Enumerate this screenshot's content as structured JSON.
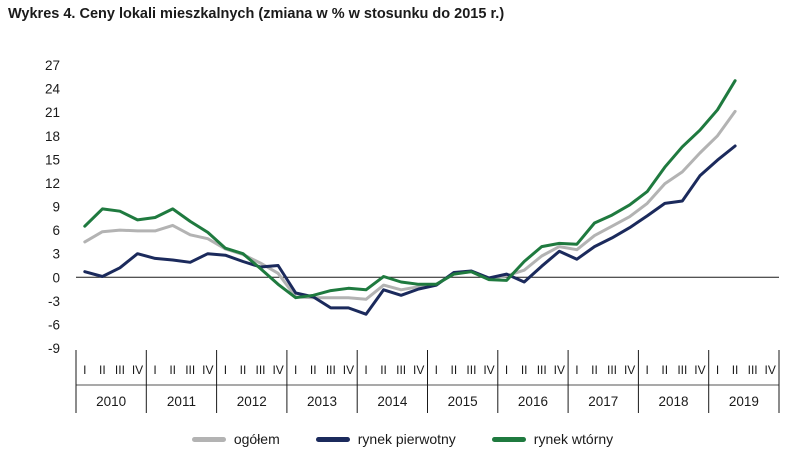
{
  "chart_data": {
    "type": "line",
    "title": "Wykres 4. Ceny lokali mieszkalnych (zmiana w % w stosunku do 2015 r.)",
    "xlabel": "",
    "ylabel": "",
    "ylim": [
      -9,
      27
    ],
    "yticks": [
      -9,
      -6,
      -3,
      0,
      3,
      6,
      9,
      12,
      15,
      18,
      21,
      24,
      27
    ],
    "years": [
      "2010",
      "2011",
      "2012",
      "2013",
      "2014",
      "2015",
      "2016",
      "2017",
      "2018",
      "2019"
    ],
    "quarters": [
      "I",
      "II",
      "III",
      "IV"
    ],
    "legend_position": "bottom",
    "grid": false,
    "series": [
      {
        "name": "ogółem",
        "color": "#b3b3b3",
        "values": [
          4.5,
          5.8,
          6.0,
          5.9,
          5.9,
          6.6,
          5.4,
          4.9,
          3.6,
          2.9,
          1.8,
          0.5,
          -2.5,
          -2.6,
          -2.6,
          -2.6,
          -2.8,
          -1.0,
          -1.6,
          -1.2,
          -0.9,
          0.5,
          0.7,
          -0.2,
          0.2,
          0.9,
          2.7,
          3.9,
          3.5,
          5.3,
          6.5,
          7.7,
          9.4,
          11.9,
          13.4,
          15.8,
          18.0,
          21.1
        ]
      },
      {
        "name": "rynek pierwotny",
        "color": "#1b2a5c",
        "values": [
          0.7,
          0.1,
          1.2,
          3.0,
          2.4,
          2.2,
          1.9,
          3.0,
          2.8,
          2.0,
          1.3,
          1.5,
          -2.0,
          -2.5,
          -3.9,
          -3.9,
          -4.7,
          -1.6,
          -2.3,
          -1.5,
          -1.0,
          0.6,
          0.8,
          -0.1,
          0.4,
          -0.6,
          1.4,
          3.3,
          2.3,
          3.9,
          5.0,
          6.3,
          7.8,
          9.4,
          9.7,
          12.9,
          14.9,
          16.7
        ]
      },
      {
        "name": "rynek wtórny",
        "color": "#1f7a3f",
        "values": [
          6.5,
          8.7,
          8.4,
          7.3,
          7.6,
          8.7,
          7.1,
          5.7,
          3.7,
          3.0,
          1.1,
          -0.9,
          -2.6,
          -2.3,
          -1.7,
          -1.4,
          -1.6,
          0.1,
          -0.6,
          -0.9,
          -0.9,
          0.4,
          0.7,
          -0.3,
          -0.4,
          2.0,
          3.9,
          4.3,
          4.2,
          6.9,
          7.9,
          9.2,
          10.9,
          14.0,
          16.6,
          18.7,
          21.3,
          25.0
        ]
      }
    ]
  }
}
